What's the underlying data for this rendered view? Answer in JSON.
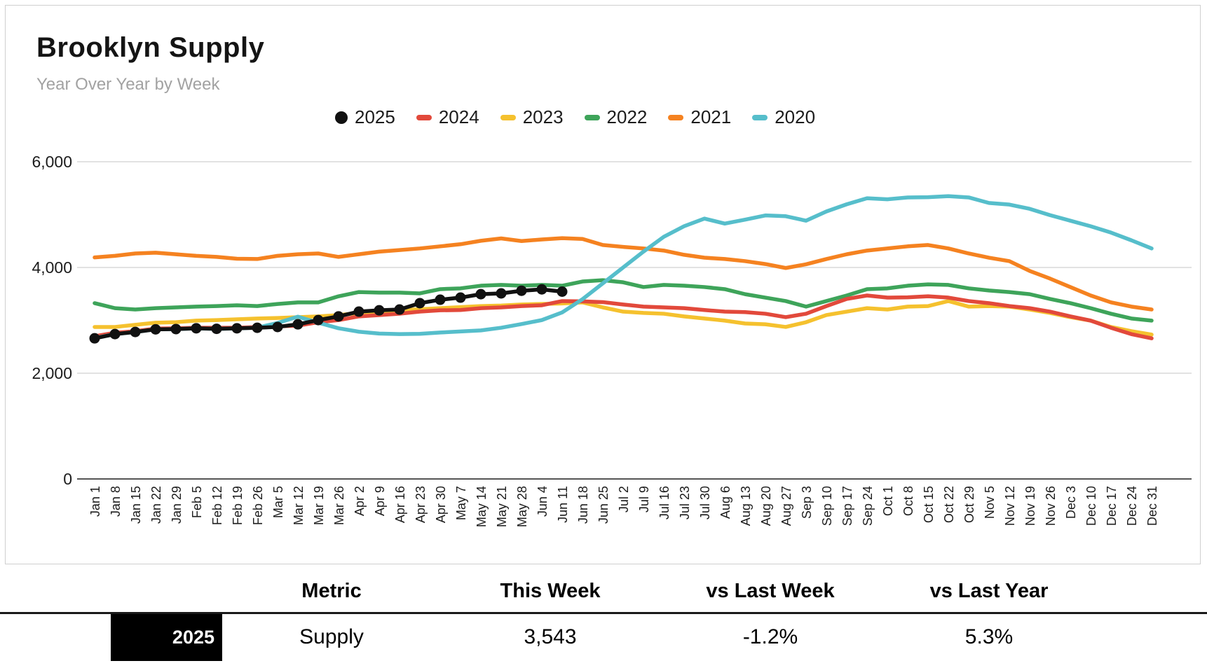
{
  "header": {
    "title": "Brooklyn Supply",
    "subtitle": "Year Over Year by Week"
  },
  "chart_data": {
    "type": "line",
    "title": "Brooklyn Supply",
    "subtitle": "Year Over Year by Week",
    "grid": true,
    "legend_position": "top",
    "ylim": [
      0,
      6000
    ],
    "yticks": [
      0,
      2000,
      4000,
      6000
    ],
    "ytick_labels": [
      "0",
      "2,000",
      "4,000",
      "6,000"
    ],
    "x": [
      "Jan 1",
      "Jan 8",
      "Jan 15",
      "Jan 22",
      "Jan 29",
      "Feb 5",
      "Feb 12",
      "Feb 19",
      "Feb 26",
      "Mar 5",
      "Mar 12",
      "Mar 19",
      "Mar 26",
      "Apr 2",
      "Apr 9",
      "Apr 16",
      "Apr 23",
      "Apr 30",
      "May 7",
      "May 14",
      "May 21",
      "May 28",
      "Jun 4",
      "Jun 11",
      "Jun 18",
      "Jun 25",
      "Jul 2",
      "Jul 9",
      "Jul 16",
      "Jul 23",
      "Jul 30",
      "Aug 6",
      "Aug 13",
      "Aug 20",
      "Aug 27",
      "Sep 3",
      "Sep 10",
      "Sep 17",
      "Sep 24",
      "Oct 1",
      "Oct 8",
      "Oct 15",
      "Oct 22",
      "Oct 29",
      "Nov 5",
      "Nov 12",
      "Nov 19",
      "Nov 26",
      "Dec 3",
      "Dec 10",
      "Dec 17",
      "Dec 24",
      "Dec 31"
    ],
    "series": [
      {
        "name": "2025",
        "color": "#111111",
        "marker": "circle",
        "values": [
          2660,
          2740,
          2780,
          2830,
          2835,
          2850,
          2840,
          2850,
          2860,
          2875,
          2925,
          3005,
          3075,
          3165,
          3190,
          3205,
          3325,
          3390,
          3430,
          3495,
          3510,
          3560,
          3586,
          3543
        ]
      },
      {
        "name": "2024",
        "color": "#E2493B",
        "marker": "dash",
        "values": [
          2700,
          2765,
          2795,
          2845,
          2850,
          2860,
          2860,
          2860,
          2875,
          2885,
          2900,
          2965,
          3005,
          3075,
          3100,
          3125,
          3165,
          3190,
          3195,
          3230,
          3245,
          3270,
          3285,
          3365,
          3360,
          3345,
          3300,
          3260,
          3245,
          3230,
          3195,
          3165,
          3155,
          3125,
          3060,
          3125,
          3270,
          3405,
          3470,
          3430,
          3435,
          3455,
          3430,
          3365,
          3325,
          3270,
          3230,
          3165,
          3075,
          2995,
          2860,
          2740,
          2660
        ]
      },
      {
        "name": "2023",
        "color": "#F5C12E",
        "marker": "dash",
        "values": [
          2875,
          2875,
          2915,
          2955,
          2965,
          2995,
          3005,
          3020,
          3035,
          3045,
          3060,
          3075,
          3100,
          3140,
          3170,
          3190,
          3210,
          3230,
          3250,
          3270,
          3280,
          3300,
          3310,
          3320,
          3340,
          3245,
          3165,
          3140,
          3125,
          3075,
          3035,
          2995,
          2940,
          2925,
          2875,
          2965,
          3100,
          3165,
          3230,
          3205,
          3260,
          3270,
          3365,
          3260,
          3270,
          3260,
          3205,
          3140,
          3060,
          2995,
          2875,
          2795,
          2730
        ]
      },
      {
        "name": "2022",
        "color": "#3EA45A",
        "marker": "dash",
        "values": [
          3325,
          3230,
          3205,
          3230,
          3245,
          3260,
          3270,
          3285,
          3270,
          3310,
          3340,
          3340,
          3455,
          3535,
          3525,
          3525,
          3510,
          3590,
          3605,
          3655,
          3670,
          3655,
          3670,
          3655,
          3735,
          3760,
          3720,
          3630,
          3670,
          3655,
          3630,
          3590,
          3495,
          3430,
          3365,
          3260,
          3365,
          3470,
          3590,
          3605,
          3655,
          3680,
          3670,
          3605,
          3565,
          3535,
          3495,
          3405,
          3325,
          3230,
          3125,
          3035,
          2995
        ]
      },
      {
        "name": "2021",
        "color": "#F58220",
        "marker": "dash",
        "values": [
          4190,
          4220,
          4265,
          4280,
          4250,
          4220,
          4200,
          4165,
          4160,
          4220,
          4250,
          4265,
          4200,
          4250,
          4300,
          4330,
          4360,
          4400,
          4440,
          4505,
          4550,
          4500,
          4530,
          4555,
          4540,
          4425,
          4390,
          4360,
          4320,
          4240,
          4185,
          4160,
          4120,
          4065,
          3990,
          4060,
          4160,
          4250,
          4320,
          4360,
          4400,
          4425,
          4360,
          4265,
          4185,
          4120,
          3935,
          3790,
          3630,
          3470,
          3340,
          3260,
          3205
        ]
      },
      {
        "name": "2020",
        "color": "#56BECB",
        "marker": "dash",
        "values": [
          2665,
          2740,
          2780,
          2830,
          2835,
          2848,
          2838,
          2848,
          2862,
          2950,
          3070,
          2955,
          2850,
          2785,
          2750,
          2740,
          2745,
          2770,
          2790,
          2810,
          2860,
          2930,
          3005,
          3150,
          3400,
          3700,
          4000,
          4300,
          4580,
          4780,
          4925,
          4830,
          4905,
          4985,
          4970,
          4885,
          5060,
          5195,
          5310,
          5290,
          5325,
          5330,
          5350,
          5325,
          5220,
          5190,
          5110,
          4990,
          4885,
          4780,
          4660,
          4515,
          4360
        ]
      }
    ]
  },
  "table": {
    "headers": [
      "Metric",
      "This Week",
      "vs Last Week",
      "vs Last Year"
    ],
    "rows": [
      {
        "year": "2025",
        "year_bg": "#000000",
        "metric": "Supply",
        "this_week": "3,543",
        "vs_last_week": "-1.2%",
        "vs_last_year": "5.3%"
      }
    ]
  }
}
